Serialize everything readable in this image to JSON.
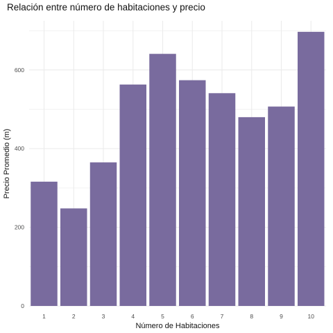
{
  "chart_data": {
    "type": "bar",
    "title": "Relación entre número de habitaciones y precio",
    "xlabel": "Número de Habitaciones",
    "ylabel": "Precio Promedio (m)",
    "categories": [
      "1",
      "2",
      "3",
      "4",
      "5",
      "6",
      "7",
      "8",
      "9",
      "10"
    ],
    "values": [
      316,
      248,
      365,
      563,
      641,
      574,
      541,
      480,
      507,
      697
    ],
    "ylim": [
      0,
      725
    ],
    "yticks": [
      "0",
      "200",
      "400",
      "600"
    ],
    "bar_color": "#796b9e",
    "grid_color": "#ebebeb",
    "grid": true
  }
}
